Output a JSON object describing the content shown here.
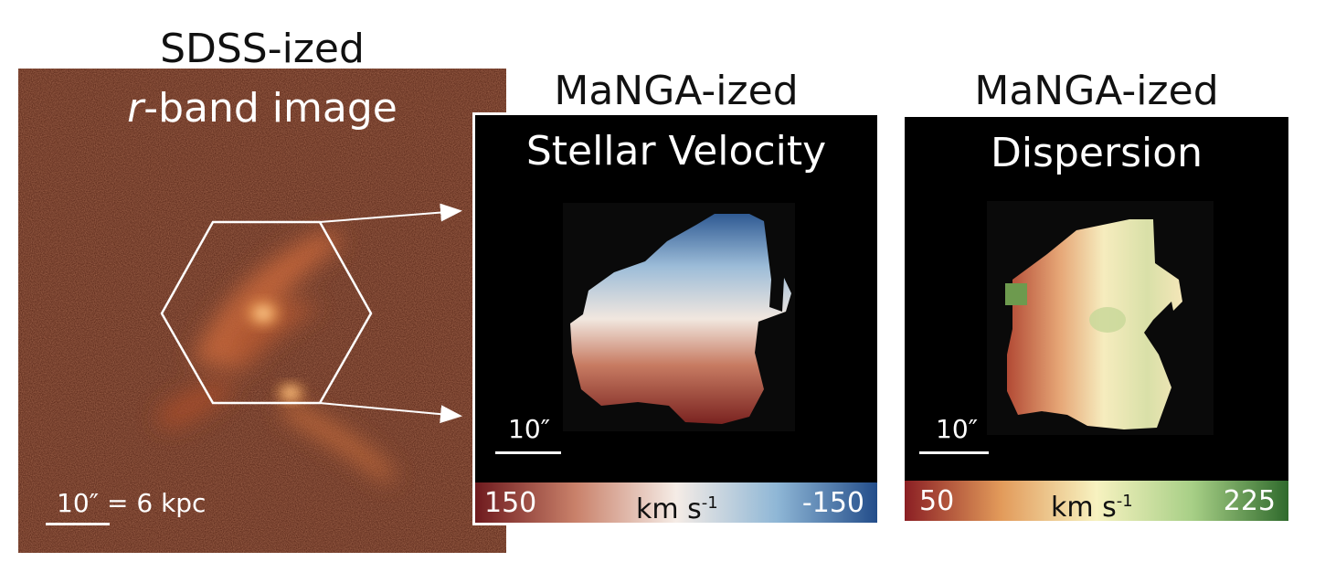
{
  "panels": {
    "sdss": {
      "title_line1": "SDSS-ized",
      "title_line2_italic": "r",
      "title_line2_rest": "-band image",
      "scalebar_label": "10″ = 6 kpc"
    },
    "velocity": {
      "title_line1": "MaNGA-ized",
      "title_line2": "Stellar Velocity",
      "scalebar_label": "10″",
      "colorbar": {
        "min_label": "150",
        "unit_label": "km s",
        "unit_exp": "-1",
        "max_label": "-150",
        "colors": [
          "#6e1a1e",
          "#c9816a",
          "#f5ece6",
          "#8fb7d6",
          "#234d8a"
        ]
      }
    },
    "dispersion": {
      "title_line1": "MaNGA-ized",
      "title_line2": "Dispersion",
      "scalebar_label": "10″",
      "colorbar": {
        "min_label": "50",
        "unit_label": "km s",
        "unit_exp": "-1",
        "max_label": "225",
        "colors": [
          "#8b1f24",
          "#e29a5a",
          "#f7f2c0",
          "#a7cf86",
          "#2f6a2c"
        ]
      }
    }
  }
}
